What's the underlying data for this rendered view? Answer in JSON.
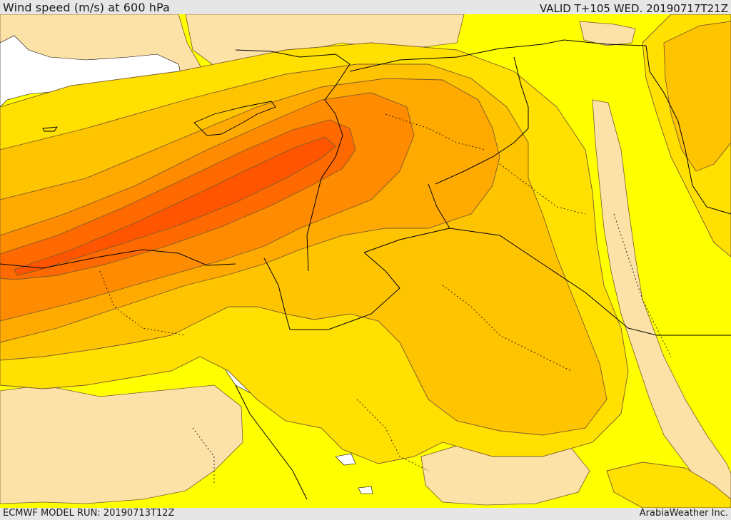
{
  "header": {
    "title": "Wind speed (m/s) at 600 hPa",
    "valid": "VALID T+105 WED. 20190717T21Z"
  },
  "footer": {
    "model_run": "ECMWF MODEL RUN: 20190713T12Z",
    "brand": "ArabiaWeather Inc."
  },
  "map": {
    "variable": "wind speed",
    "level": "600 hPa",
    "units": "m/s",
    "palette": {
      "calmest": "#fde2a8",
      "light": "#ffff00",
      "moderate_low": "#ffe000",
      "moderate": "#ffc400",
      "strong_low": "#ffaa00",
      "strong": "#ff8c00",
      "stronger": "#ff6a00",
      "strongest": "#ff5500",
      "water": "#ffffff",
      "contour_line": "#7a5a30",
      "border_line": "#000000"
    }
  }
}
